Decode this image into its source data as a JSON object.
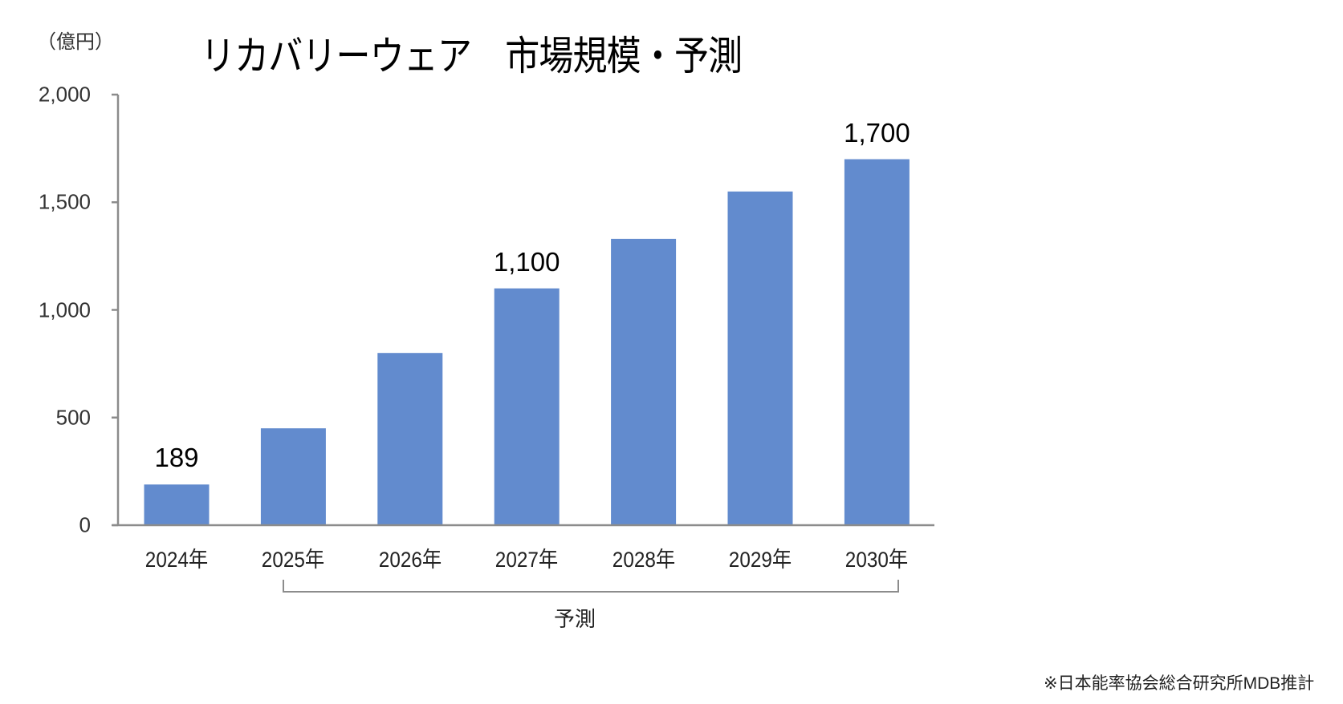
{
  "header": {
    "unit_label": "（億円）",
    "title": "リカバリーウェア　市場規模・予測"
  },
  "forecast_bracket": {
    "label": "予測",
    "from_category": "2025年",
    "to_category": "2030年"
  },
  "footer": {
    "source": "※日本能率協会総合研究所MDB推計"
  },
  "colors": {
    "bar": "#628bce",
    "axis": "#8c8c8c",
    "text": "#222222"
  },
  "chart_data": {
    "type": "bar",
    "title": "リカバリーウェア　市場規模・予測",
    "xlabel": "",
    "ylabel": "（億円）",
    "ylim": [
      0,
      2000
    ],
    "yticks": [
      0,
      500,
      1000,
      1500,
      2000
    ],
    "ytick_labels": [
      "0",
      "500",
      "1,000",
      "1,500",
      "2,000"
    ],
    "grid": false,
    "legend": null,
    "categories": [
      "2024年",
      "2025年",
      "2026年",
      "2027年",
      "2028年",
      "2029年",
      "2030年"
    ],
    "values": [
      189,
      450,
      800,
      1100,
      1330,
      1550,
      1700
    ],
    "data_labels": [
      "189",
      "",
      "",
      "1,100",
      "",
      "",
      "1,700"
    ],
    "annotations": [
      {
        "text": "予測",
        "type": "bracket",
        "span": [
          "2025年",
          "2030年"
        ]
      },
      {
        "text": "※日本能率協会総合研究所MDB推計",
        "type": "source"
      }
    ]
  }
}
